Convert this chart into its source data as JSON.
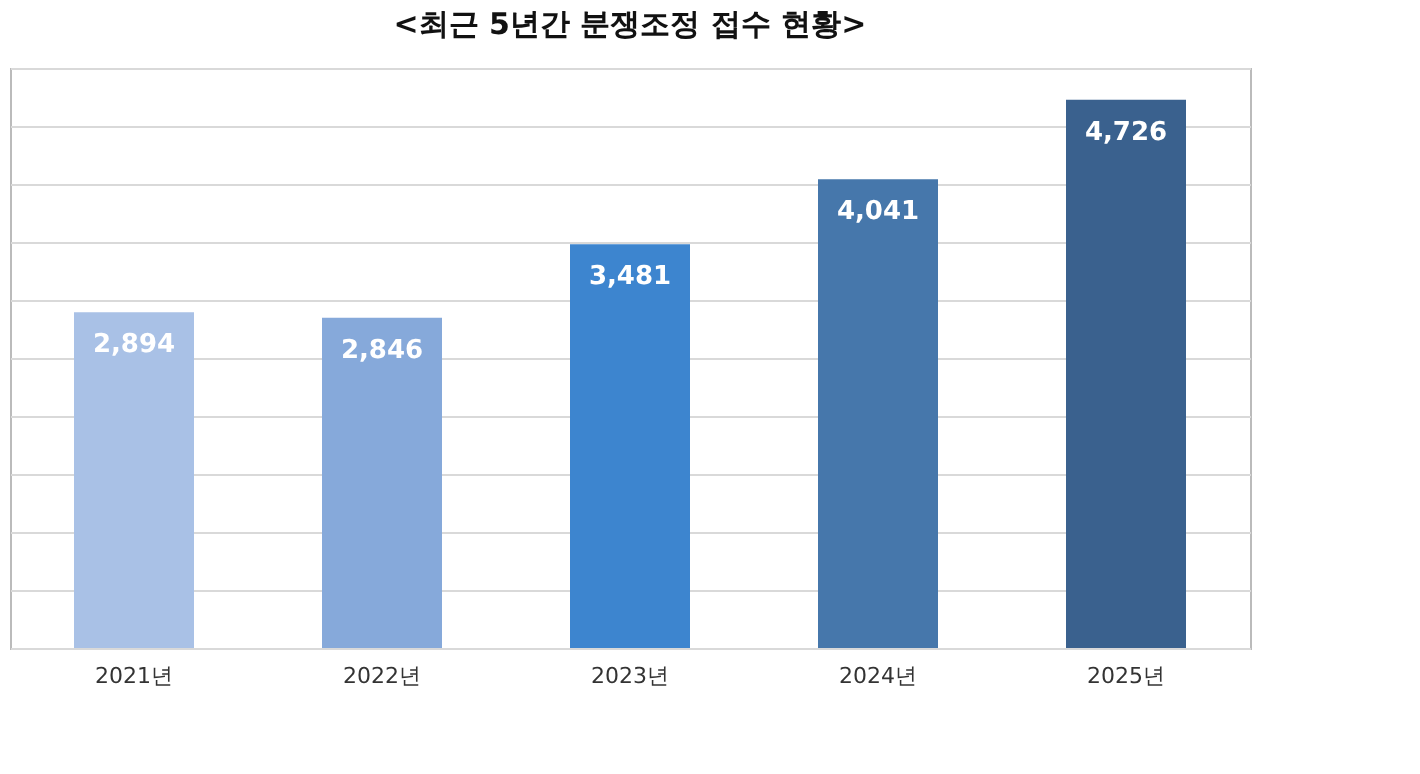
{
  "chart_data": {
    "type": "bar",
    "title": "<최근 5년간 분쟁조정 접수 현황>",
    "categories": [
      "2021년",
      "2022년",
      "2023년",
      "2024년",
      "2025년"
    ],
    "values": [
      2894,
      2846,
      3481,
      4041,
      4726
    ],
    "colors": [
      "#a9c1e6",
      "#86a9da",
      "#3d85cf",
      "#4677ab",
      "#3a618e"
    ],
    "value_labels": [
      "2,894",
      "2,846",
      "3,481",
      "4,041",
      "4,726"
    ],
    "grid": "y",
    "tick_labels": "x"
  }
}
